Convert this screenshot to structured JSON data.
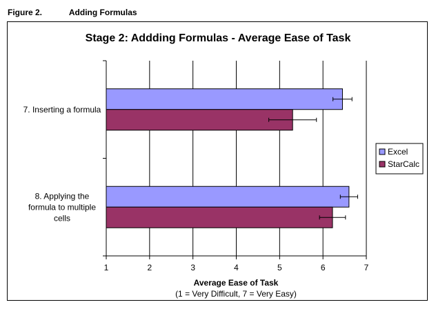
{
  "figure": {
    "number": "Figure 2.",
    "caption": "Adding Formulas"
  },
  "chart_data": {
    "type": "bar",
    "orientation": "horizontal",
    "title": "Stage 2: Addding Formulas - Average Ease of Task",
    "categories": [
      "7. Inserting a formula",
      "8. Applying the formula to multiple cells"
    ],
    "category_lines": [
      [
        "7. Inserting a formula"
      ],
      [
        "8. Applying the",
        "formula to multiple",
        "cells"
      ]
    ],
    "series": [
      {
        "name": "Excel",
        "color": "#9999FF",
        "values": [
          6.45,
          6.6
        ],
        "errors": [
          0.22,
          0.2
        ]
      },
      {
        "name": "StarCalc",
        "color": "#993366",
        "values": [
          5.3,
          6.22
        ],
        "errors": [
          0.55,
          0.3
        ]
      }
    ],
    "xlabel": "Average Ease of Task",
    "xlabel_sub": "(1 = Very Difficult, 7 = Very Easy)",
    "xlim": [
      1,
      7
    ],
    "xticks": [
      "1",
      "2",
      "3",
      "4",
      "5",
      "6",
      "7"
    ],
    "grid": true,
    "legend": "right"
  }
}
